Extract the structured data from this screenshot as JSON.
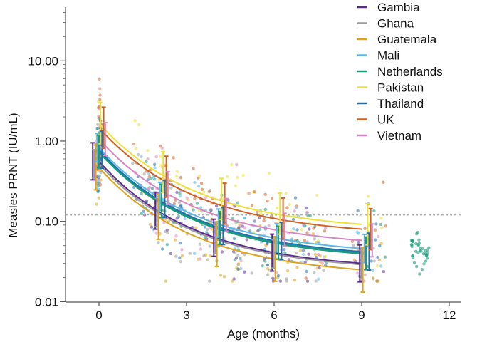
{
  "chart_data": {
    "type": "scatter",
    "title": "",
    "xlabel": "Age (months)",
    "ylabel": "Measles PRNT (IU/mL)",
    "xlim": [
      -1.15,
      12.4
    ],
    "ylim": [
      0.01,
      45
    ],
    "yscale": "log",
    "xticks": [
      0,
      3,
      6,
      9,
      12
    ],
    "xtick_labels": [
      "0",
      "3",
      "6",
      "9",
      "12"
    ],
    "yticks": [
      0.01,
      0.1,
      1,
      10
    ],
    "ytick_labels": [
      "0.01",
      "0.10",
      "1.00",
      "10.00"
    ],
    "reference_line": {
      "value": 0.12,
      "style": "dashed",
      "color": "#aaaaaa"
    },
    "legend_position": "top-right",
    "ci_ages": [
      0,
      2,
      4,
      6,
      9
    ],
    "series": [
      {
        "name": "Gambia",
        "color": "#5b2a91",
        "fit_age0": 0.56,
        "fit_age9": 0.03,
        "ci_fold": 1.7
      },
      {
        "name": "Ghana",
        "color": "#9b9b9b",
        "fit_age0": 0.52,
        "fit_age9": 0.029,
        "ci_fold": 1.5
      },
      {
        "name": "Guatemala",
        "color": "#e0a21a",
        "fit_age0": 0.47,
        "fit_age9": 0.025,
        "ci_fold": 1.9
      },
      {
        "name": "Mali",
        "color": "#5cb7e8",
        "fit_age0": 0.83,
        "fit_age9": 0.046,
        "ci_fold": 1.5
      },
      {
        "name": "Netherlands",
        "color": "#1a9c7a",
        "fit_age0": 0.74,
        "fit_age9": 0.04,
        "ci_fold": 1.6
      },
      {
        "name": "Pakistan",
        "color": "#ede03a",
        "fit_age0": 1.67,
        "fit_age9": 0.092,
        "ci_fold": 1.8
      },
      {
        "name": "Thailand",
        "color": "#1f6fb5",
        "fit_age0": 0.78,
        "fit_age9": 0.042,
        "ci_fold": 1.7
      },
      {
        "name": "UK",
        "color": "#d2601f",
        "fit_age0": 1.47,
        "fit_age9": 0.08,
        "ci_fold": 1.8
      },
      {
        "name": "Vietnam",
        "color": "#d986c0",
        "fit_age0": 1.06,
        "fit_age9": 0.058,
        "ci_fold": 1.6
      }
    ]
  }
}
